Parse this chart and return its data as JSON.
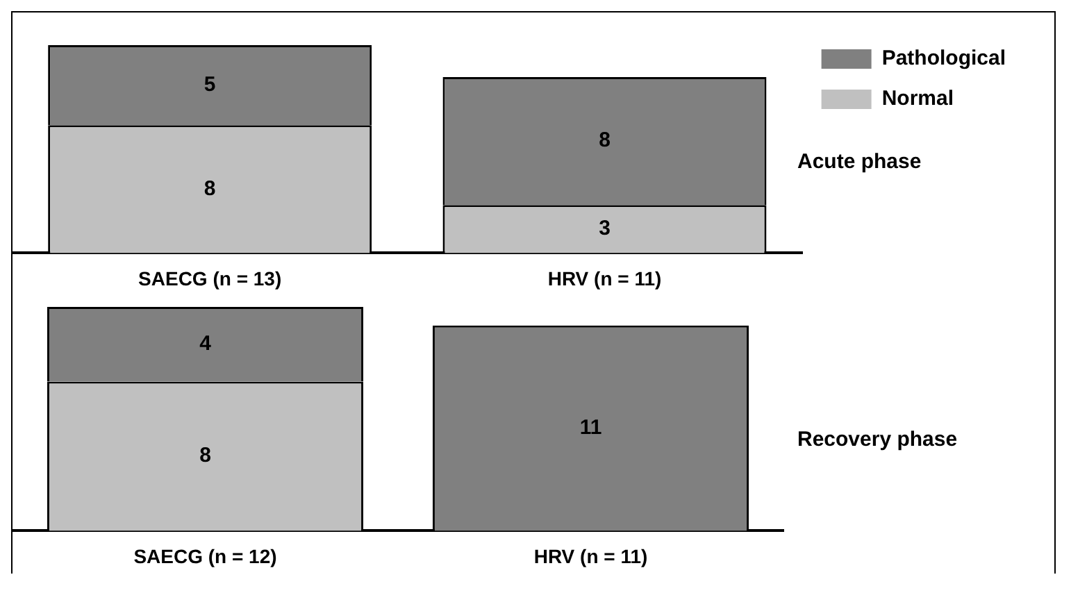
{
  "chart_data": [
    {
      "type": "bar",
      "categories": [
        "SAECG (n = 13)",
        "HRV (n = 11)"
      ],
      "stacked": true,
      "data_labels": true,
      "legend": "top right",
      "tick_labels": "x",
      "annotations": [
        "Acute phase"
      ],
      "series": [
        {
          "name": "Normal",
          "color": "#c0c0c0",
          "values": [
            8,
            3
          ]
        },
        {
          "name": "Pathological",
          "color": "#808080",
          "values": [
            5,
            8
          ]
        }
      ]
    },
    {
      "type": "bar",
      "categories": [
        "SAECG (n = 12)",
        "HRV (n = 11)"
      ],
      "stacked": true,
      "data_labels": true,
      "legend": false,
      "tick_labels": "x",
      "annotations": [
        "Recovery phase"
      ],
      "series": [
        {
          "color": "#c0c0c0",
          "values": [
            8,
            null
          ]
        },
        {
          "color": "#808080",
          "values": [
            4,
            11
          ]
        }
      ]
    }
  ]
}
